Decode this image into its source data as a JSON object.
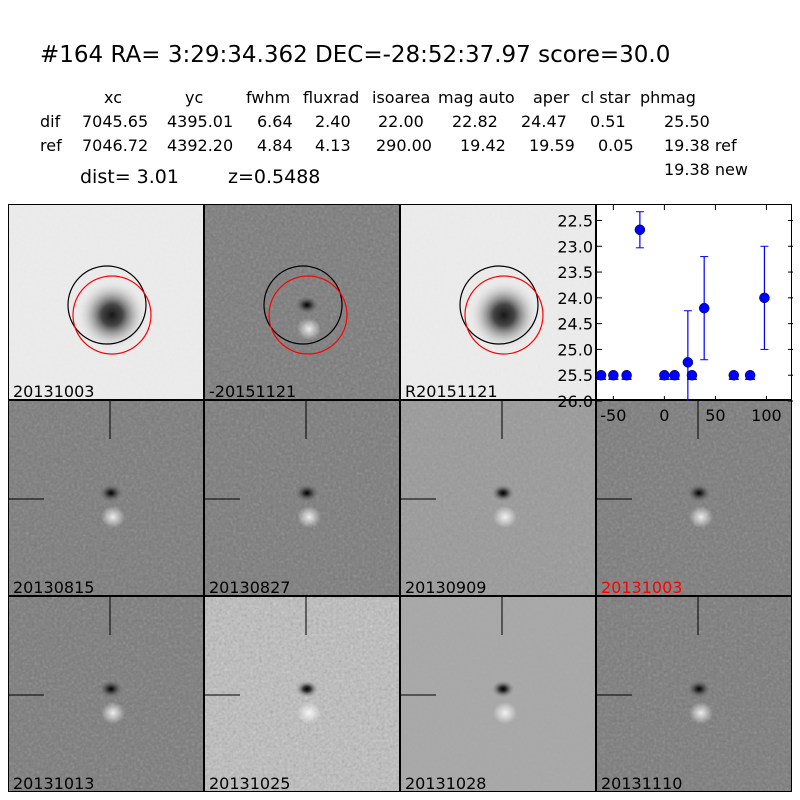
{
  "title": "#164   RA= 3:29:34.362 DEC=-28:52:37.97      score=30.0",
  "table": {
    "headers": [
      "xc",
      "yc",
      "fwhm",
      "fluxrad",
      "isoarea",
      "mag auto",
      "aper",
      "cl star",
      "phmag"
    ],
    "rows": [
      {
        "label": "dif",
        "values": [
          "7045.65",
          "4395.01",
          "6.64",
          "2.40",
          "22.00",
          "22.82",
          "24.47",
          "0.51",
          "25.50"
        ]
      },
      {
        "label": "ref",
        "values": [
          "7046.72",
          "4392.20",
          "4.84",
          "4.13",
          "290.00",
          "19.42",
          "19.59",
          "0.05",
          "19.38 ref"
        ]
      }
    ],
    "extra": "19.38 new"
  },
  "dist": "dist=  3.01",
  "z": "z=0.5488",
  "panels": [
    {
      "label": "20131003",
      "kind": "ref",
      "circles": true
    },
    {
      "label": "-20151121",
      "kind": "diff",
      "circles": true
    },
    {
      "label": "R20151121",
      "kind": "ref",
      "circles": true
    },
    {
      "label": "20130815",
      "kind": "diff"
    },
    {
      "label": "20130827",
      "kind": "diff"
    },
    {
      "label": "20130909",
      "kind": "diffl"
    },
    {
      "label": "20131003",
      "kind": "diff",
      "highlight": true
    },
    {
      "label": "20131013",
      "kind": "diff"
    },
    {
      "label": "20131025",
      "kind": "noisy"
    },
    {
      "label": "20131028",
      "kind": "smooth"
    },
    {
      "label": "20131110",
      "kind": "diff"
    }
  ],
  "colors": {
    "highlight": "#ff0000",
    "circle_outer": "#000000",
    "circle_inner": "#ff0000",
    "points": "#0000ff"
  },
  "chart_data": {
    "type": "scatter",
    "xlim": [
      -66,
      126
    ],
    "ylim": [
      26.0,
      22.2
    ],
    "y_inverted": true,
    "xticks": [
      -50,
      0,
      50,
      100
    ],
    "yticks": [
      22.5,
      23.0,
      23.5,
      24.0,
      24.5,
      25.0,
      25.5,
      26.0
    ],
    "points": [
      {
        "x": -62,
        "y": 25.5,
        "err": null
      },
      {
        "x": -50,
        "y": 25.5,
        "err": null
      },
      {
        "x": -37,
        "y": 25.5,
        "err": null
      },
      {
        "x": -24,
        "y": 22.68,
        "err": 0.35
      },
      {
        "x": 0,
        "y": 25.5,
        "err": null
      },
      {
        "x": 10,
        "y": 25.5,
        "err": null
      },
      {
        "x": 23,
        "y": 25.25,
        "err": 1.0
      },
      {
        "x": 27,
        "y": 25.5,
        "err": null
      },
      {
        "x": 39,
        "y": 24.2,
        "err": 1.0
      },
      {
        "x": 68,
        "y": 25.5,
        "err": null
      },
      {
        "x": 84,
        "y": 25.5,
        "err": null
      },
      {
        "x": 98,
        "y": 24.0,
        "err": 1.0
      }
    ]
  }
}
